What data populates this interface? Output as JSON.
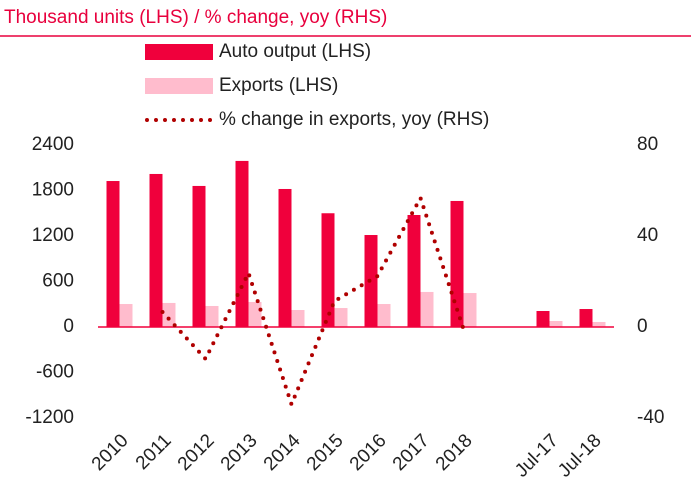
{
  "chart_data": {
    "type": "bar",
    "title": "Thousand units (LHS) / % change, yoy (RHS)",
    "categories": [
      "2010",
      "2011",
      "2012",
      "2013",
      "2014",
      "2015",
      "2016",
      "2017",
      "2018",
      null,
      "Jul-17",
      "Jul-18"
    ],
    "series": [
      {
        "name": "Auto output (LHS)",
        "color": "#f0003c",
        "type": "bar",
        "values": [
          1925,
          2018,
          1860,
          2190,
          1820,
          1500,
          1213,
          1477,
          1662,
          null,
          211,
          237
        ]
      },
      {
        "name": "Exports (LHS)",
        "color": "#ffbccd",
        "type": "bar",
        "values": [
          303,
          317,
          277,
          330,
          224,
          250,
          303,
          462,
          448,
          null,
          79,
          66
        ]
      },
      {
        "name": "% change in exports, yoy (RHS)",
        "color": "#b00000",
        "type": "line",
        "axis": "y2",
        "values": [
          null,
          6.6,
          -14,
          23.7,
          -34,
          11.4,
          22.4,
          56.7,
          -0.9,
          null,
          null,
          null
        ]
      }
    ],
    "ylim": [
      -1200,
      2400
    ],
    "yticks": [
      -1200,
      -600,
      0,
      600,
      1200,
      1800,
      2400
    ],
    "y2lim": [
      -40,
      80
    ],
    "y2ticks": [
      -40,
      0,
      40,
      80
    ]
  }
}
